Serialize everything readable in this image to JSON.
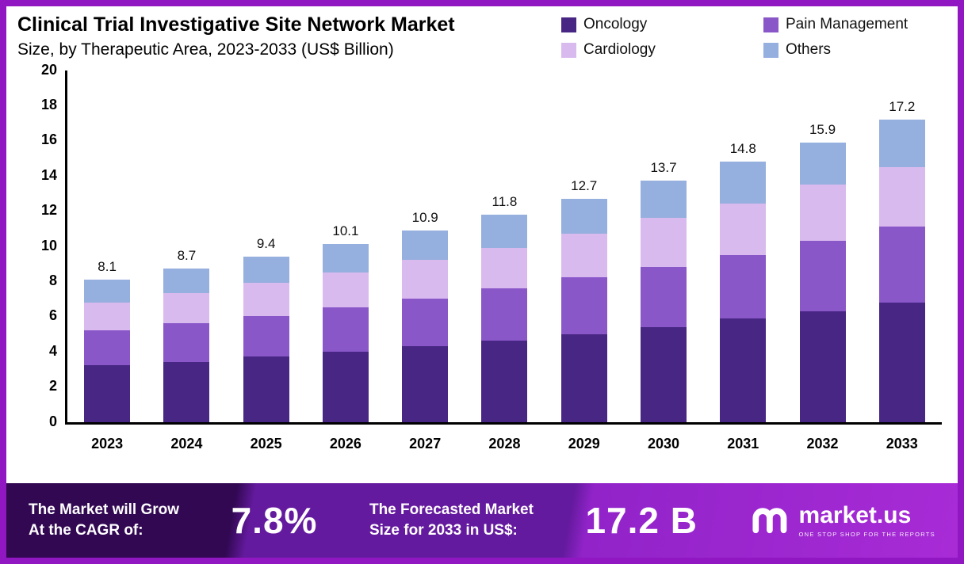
{
  "header": {
    "title_line1": "Clinical Trial Investigative Site Network Market",
    "title_line2": "Size, by Therapeutic Area, 2023-2033 (US$ Billion)"
  },
  "chart_data": {
    "type": "bar",
    "stacked": true,
    "title": "Clinical Trial Investigative Site Network Market Size, by Therapeutic Area, 2023-2033 (US$ Billion)",
    "categories": [
      "2023",
      "2024",
      "2025",
      "2026",
      "2027",
      "2028",
      "2029",
      "2030",
      "2031",
      "2032",
      "2033"
    ],
    "series": [
      {
        "name": "Oncology",
        "color": "#482784",
        "values": [
          3.2,
          3.4,
          3.7,
          4.0,
          4.3,
          4.6,
          5.0,
          5.4,
          5.9,
          6.3,
          6.8
        ]
      },
      {
        "name": "Pain Management",
        "color": "#8a57c9",
        "values": [
          2.0,
          2.2,
          2.3,
          2.5,
          2.7,
          3.0,
          3.2,
          3.4,
          3.6,
          4.0,
          4.3
        ]
      },
      {
        "name": "Cardiology",
        "color": "#d9baee",
        "values": [
          1.6,
          1.7,
          1.9,
          2.0,
          2.2,
          2.3,
          2.5,
          2.8,
          2.9,
          3.2,
          3.4
        ]
      },
      {
        "name": "Others",
        "color": "#95afde",
        "values": [
          1.3,
          1.4,
          1.5,
          1.6,
          1.7,
          1.9,
          2.0,
          2.1,
          2.4,
          2.4,
          2.7
        ]
      }
    ],
    "totals": [
      8.1,
      8.7,
      9.4,
      10.1,
      10.9,
      11.8,
      12.7,
      13.7,
      14.8,
      15.9,
      17.2
    ],
    "ylim": [
      0,
      20
    ],
    "yticks": [
      0,
      2,
      4,
      6,
      8,
      10,
      12,
      14,
      16,
      18,
      20
    ],
    "grid": false,
    "legend_position": "top-right"
  },
  "banner": {
    "cagr_label_line1": "The Market will Grow",
    "cagr_label_line2": "At the CAGR of:",
    "cagr_value": "7.8%",
    "forecast_label_line1": "The Forecasted Market",
    "forecast_label_line2": "Size for 2033 in US$:",
    "forecast_value": "17.2 B",
    "brand_name": "market.us",
    "brand_tagline": "One Stop Shop For The Reports"
  },
  "colors": {
    "frame_border": "#9117c2",
    "axis": "#000000",
    "banner_gradient": [
      "#320853",
      "#641a9e",
      "#9123c9",
      "#a82bd6"
    ]
  }
}
